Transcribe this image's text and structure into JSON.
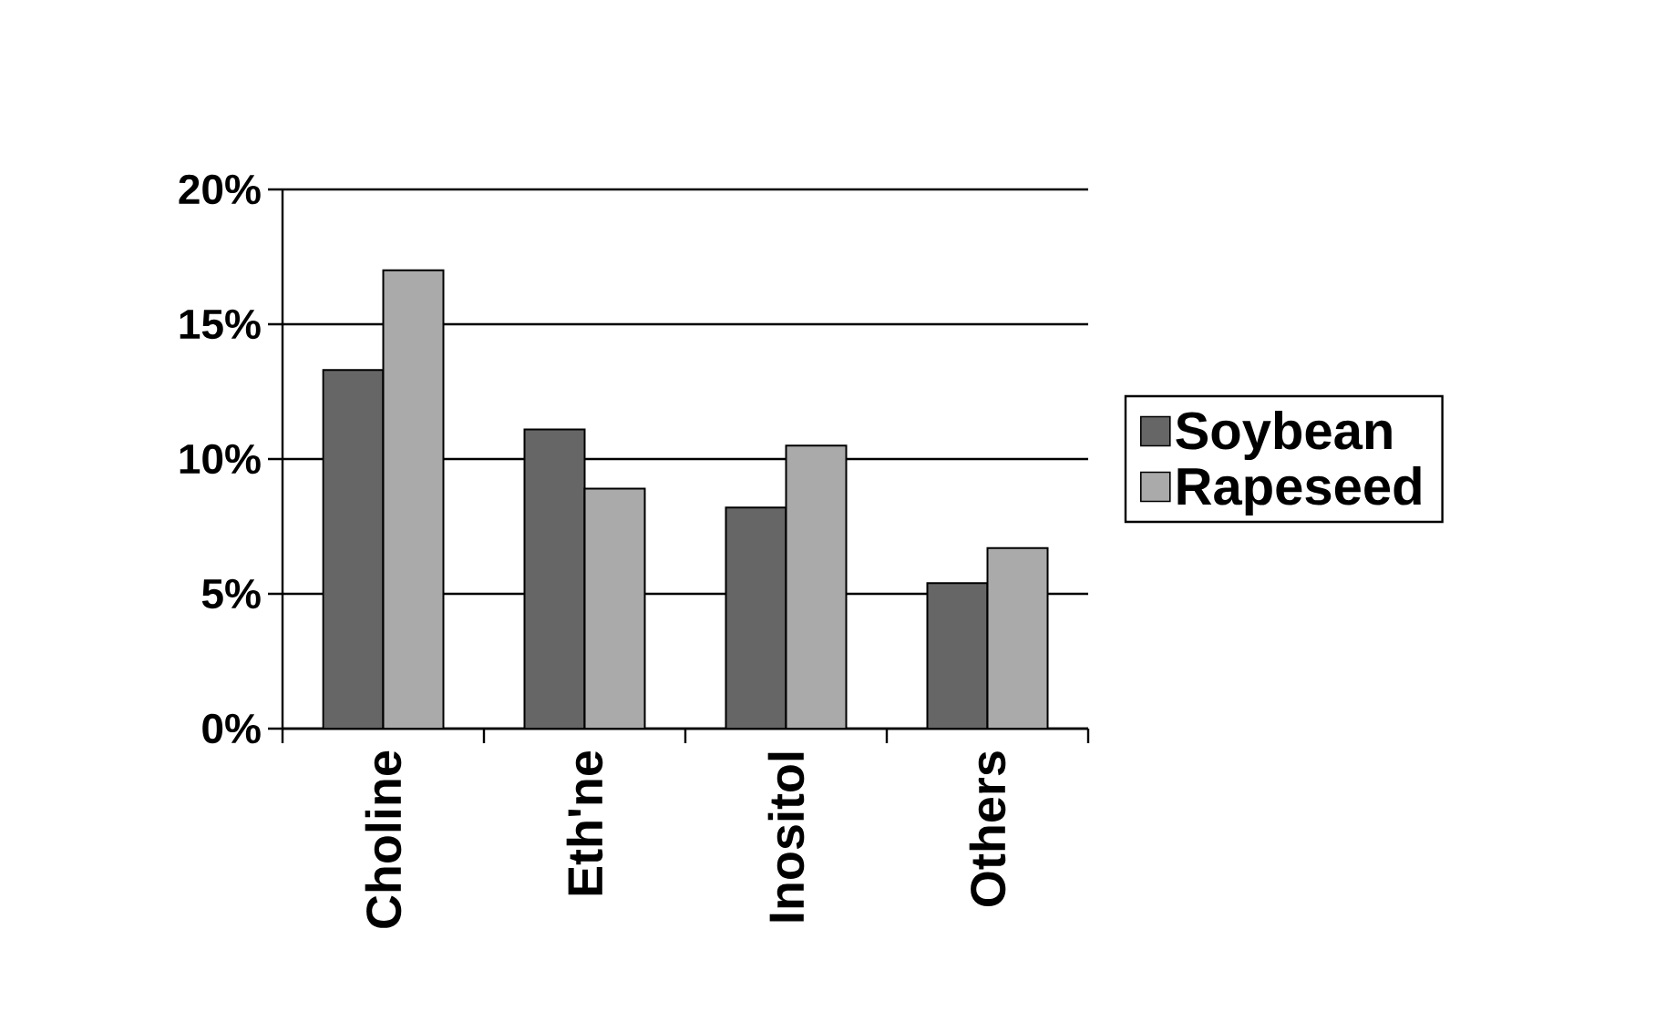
{
  "chart_data": {
    "type": "bar",
    "categories": [
      "Choline",
      "Eth'ne",
      "Inositol",
      "Others"
    ],
    "series": [
      {
        "name": "Soybean",
        "color": "#666666",
        "values": [
          13.3,
          11.1,
          8.2,
          5.4
        ]
      },
      {
        "name": "Rapeseed",
        "color": "#aaaaaa",
        "values": [
          17.0,
          8.9,
          10.5,
          6.7
        ]
      }
    ],
    "ylim": [
      0,
      20
    ],
    "yticks": [
      {
        "value": 0,
        "label": "0%"
      },
      {
        "value": 5,
        "label": "5%"
      },
      {
        "value": 10,
        "label": "10%"
      },
      {
        "value": 15,
        "label": "15%"
      },
      {
        "value": 20,
        "label": "20%"
      }
    ],
    "grid": "y",
    "legend": "right"
  }
}
